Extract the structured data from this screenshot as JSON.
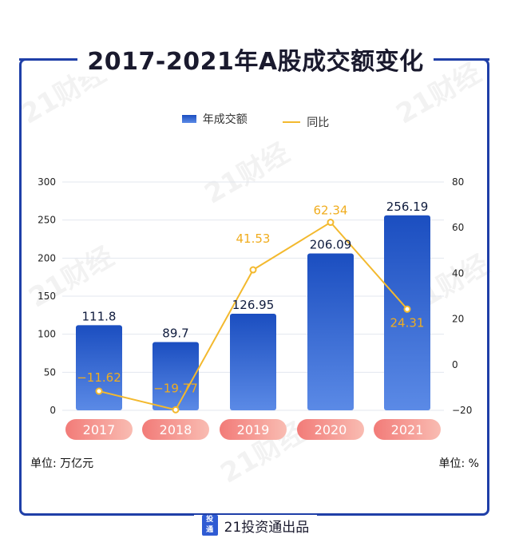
{
  "title": "2017-2021年A股成交额变化",
  "legend": {
    "bar_label": "年成交额",
    "line_label": "同比"
  },
  "left_unit": "单位: 万亿元",
  "right_unit": "单位: %",
  "source": "21投资通出品",
  "watermark": "21财经",
  "colors": {
    "bar_top": "#1b4ec0",
    "bar_bottom": "#5b8ae6",
    "line": "#f3b92e",
    "line_label": "#f0ad1f",
    "pill_left": "#f27b78",
    "pill_right": "#f9bcb2",
    "frame": "#1f3fa8"
  },
  "chart_data": {
    "type": "bar",
    "title": "2017-2021年A股成交额变化",
    "categories": [
      "2017",
      "2018",
      "2019",
      "2020",
      "2021"
    ],
    "series": [
      {
        "name": "年成交额",
        "type": "bar",
        "axis": "left",
        "values": [
          111.8,
          89.7,
          126.95,
          206.09,
          256.19
        ]
      },
      {
        "name": "同比",
        "type": "line",
        "axis": "right",
        "values": [
          -11.62,
          -19.77,
          41.53,
          62.34,
          24.31
        ]
      }
    ],
    "y_left": {
      "min": 0,
      "max": 300,
      "ticks": [
        0,
        50,
        100,
        150,
        200,
        250,
        300
      ]
    },
    "y_right": {
      "min": -20,
      "max": 80,
      "ticks": [
        -20,
        0,
        20,
        40,
        60,
        80
      ]
    },
    "grid": true,
    "legend_position": "top"
  }
}
